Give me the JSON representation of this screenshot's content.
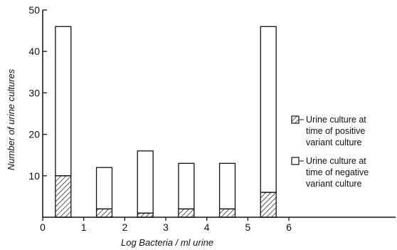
{
  "chart_data": {
    "type": "bar",
    "stacked": true,
    "xlabel": "Log  Bacteria / ml  urine",
    "ylabel": "Number  of  urine  cultures",
    "x_ticks": [
      "0",
      "1",
      "2",
      "3",
      "4",
      "5",
      "6"
    ],
    "y_ticks": [
      "10",
      "20",
      "30",
      "40",
      "50"
    ],
    "xlim": [
      0,
      8.6
    ],
    "ylim": [
      0,
      50
    ],
    "bar_x": [
      0.5,
      1.5,
      2.5,
      3.5,
      4.5,
      5.5
    ],
    "bar_width": 0.38,
    "series": [
      {
        "name": "Urine culture at time of positive variant culture",
        "pattern": "hatched",
        "values": [
          10,
          2,
          1,
          2,
          2,
          6
        ]
      },
      {
        "name": "Urine culture at time of negative variant culture",
        "pattern": "open",
        "values": [
          36,
          10,
          15,
          11,
          11,
          40
        ]
      }
    ],
    "legend": [
      {
        "pattern": "hatched",
        "lines": [
          "Urine  culture at",
          "time of  positive",
          "variant  culture"
        ]
      },
      {
        "pattern": "open",
        "lines": [
          "Urine  culture at",
          "time of  negative",
          "variant  culture"
        ]
      }
    ],
    "legend_position": "right",
    "grid": false
  }
}
